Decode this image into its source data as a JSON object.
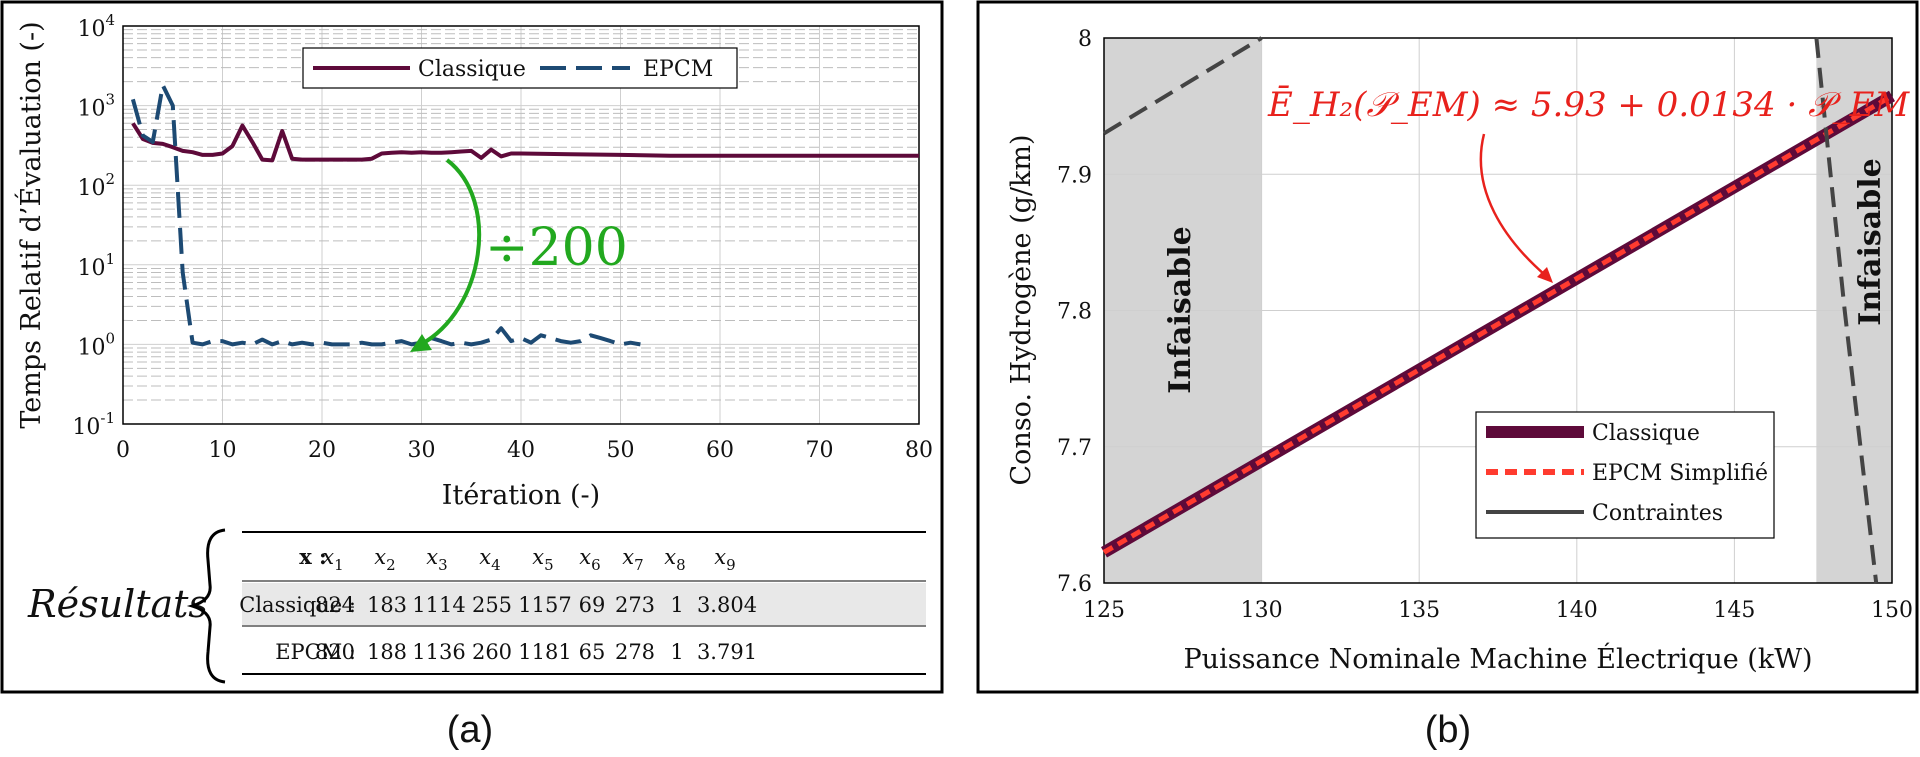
{
  "panel_labels": {
    "a": "(a)",
    "b": "(b)"
  },
  "annotation_a": "÷200",
  "equation_b": "Ē_H₂(𝒫_EM) ≈ 5.93 + 0.0134 · 𝒫_EM",
  "infaisable_label": "Infaisable",
  "results": {
    "title": "Résultats",
    "header_row_label": "x :",
    "columns": [
      "x1",
      "x2",
      "x3",
      "x4",
      "x5",
      "x6",
      "x7",
      "x8",
      "x9"
    ],
    "rows": [
      {
        "label": "Classique :",
        "values": [
          "824",
          "183",
          "1114",
          "255",
          "1157",
          "69",
          "273",
          "1",
          "3.804"
        ]
      },
      {
        "label": "EPCM :",
        "values": [
          "820",
          "188",
          "1136",
          "260",
          "1181",
          "65",
          "278",
          "1",
          "3.791"
        ]
      }
    ]
  },
  "chart_data": [
    {
      "type": "line",
      "panel": "(a)",
      "xlabel": "Itération (-)",
      "ylabel": "Temps Relatif d’Évaluation (-)",
      "xlim": [
        0,
        80
      ],
      "ylim": [
        0.1,
        10000
      ],
      "yscale": "log",
      "xticks": [
        0,
        10,
        20,
        30,
        40,
        50,
        60,
        70,
        80
      ],
      "yticks": [
        {
          "base": "10",
          "exp": "-1",
          "value": 0.1
        },
        {
          "base": "10",
          "exp": "0",
          "value": 1
        },
        {
          "base": "10",
          "exp": "1",
          "value": 10
        },
        {
          "base": "10",
          "exp": "2",
          "value": 100
        },
        {
          "base": "10",
          "exp": "3",
          "value": 1000
        },
        {
          "base": "10",
          "exp": "4",
          "value": 10000
        }
      ],
      "grid": true,
      "legend_position": "top-center",
      "colors": {
        "Classique": "#5e0a3a",
        "EPCM": "#1d4a73",
        "annotation": "#22a81f"
      },
      "series": [
        {
          "name": "Classique",
          "style": "solid",
          "x": [
            1,
            2,
            3,
            4,
            5,
            6,
            7,
            8,
            9,
            10,
            11,
            12,
            13,
            14,
            15,
            16,
            17,
            18,
            19,
            20,
            21,
            22,
            23,
            24,
            25,
            26,
            27,
            28,
            29,
            30,
            31,
            32,
            33,
            34,
            35,
            36,
            37,
            38,
            39,
            40,
            45,
            50,
            55,
            60,
            65,
            70,
            75,
            80
          ],
          "y": [
            600,
            380,
            340,
            330,
            300,
            270,
            260,
            240,
            240,
            250,
            310,
            560,
            350,
            210,
            205,
            480,
            215,
            210,
            210,
            210,
            210,
            210,
            210,
            210,
            215,
            250,
            255,
            260,
            255,
            260,
            255,
            255,
            260,
            265,
            270,
            220,
            280,
            230,
            250,
            250,
            245,
            240,
            235,
            235,
            235,
            235,
            235,
            235
          ]
        },
        {
          "name": "EPCM",
          "style": "dashed",
          "x": [
            1,
            2,
            3,
            4,
            5,
            6,
            7,
            8,
            9,
            10,
            11,
            12,
            13,
            14,
            15,
            16,
            17,
            18,
            19,
            20,
            21,
            22,
            23,
            24,
            25,
            26,
            27,
            28,
            29,
            30,
            31,
            32,
            33,
            34,
            35,
            36,
            37,
            38,
            39,
            40,
            41,
            42,
            43,
            44,
            45,
            46,
            47,
            48,
            49,
            50,
            51,
            52
          ],
          "y": [
            1200,
            420,
            350,
            1800,
            1000,
            8,
            1.05,
            1.0,
            1.1,
            1.1,
            1.0,
            1.05,
            1.0,
            1.15,
            1.0,
            1.1,
            1.0,
            1.05,
            1.0,
            1.05,
            1.0,
            1.0,
            1.0,
            1.05,
            1.0,
            1.0,
            1.05,
            1.1,
            1.0,
            1.05,
            1.2,
            1.1,
            1.0,
            1.05,
            1.0,
            1.05,
            1.15,
            1.6,
            1.1,
            1.2,
            1.05,
            1.3,
            1.2,
            1.1,
            1.05,
            1.1,
            1.3,
            1.2,
            1.1,
            1.0,
            1.05,
            1.0
          ]
        }
      ]
    },
    {
      "type": "line",
      "panel": "(b)",
      "xlabel": "Puissance Nominale Machine Électrique (kW)",
      "ylabel": "Conso. Hydrogène (g/km)",
      "xlim": [
        125,
        150
      ],
      "ylim": [
        7.6,
        8.0
      ],
      "xticks": [
        125,
        130,
        135,
        140,
        145,
        150
      ],
      "yticks": [
        7.6,
        7.7,
        7.8,
        7.9,
        8.0
      ],
      "ytick_labels": [
        "7.6",
        "7.7",
        "7.8",
        "7.9",
        "8"
      ],
      "grid": true,
      "legend_position": "bottom-right",
      "infeasible_regions": [
        [
          125,
          130
        ],
        [
          147.6,
          150
        ]
      ],
      "colors": {
        "Classique": "#5e0a3a",
        "EPCM Simplifié": "#ff3b2f",
        "Contraintes": "#444444",
        "equation": "#e8211c"
      },
      "series": [
        {
          "name": "Classique",
          "style": "solid-thick",
          "x": [
            125,
            150
          ],
          "y": [
            7.6225,
            7.9575
          ]
        },
        {
          "name": "EPCM Simplifié",
          "style": "dashed",
          "x": [
            125,
            150
          ],
          "y": [
            7.6225,
            7.9575
          ]
        },
        {
          "name": "Contraintes",
          "style": "dashed",
          "x": [
            125,
            127.5,
            130
          ],
          "y": [
            7.93,
            7.965,
            8.0
          ]
        },
        {
          "name": "Contraintes",
          "style": "dashed",
          "x": [
            147.6,
            148.5,
            149.5
          ],
          "y": [
            8.0,
            7.8,
            7.6
          ]
        }
      ]
    }
  ]
}
